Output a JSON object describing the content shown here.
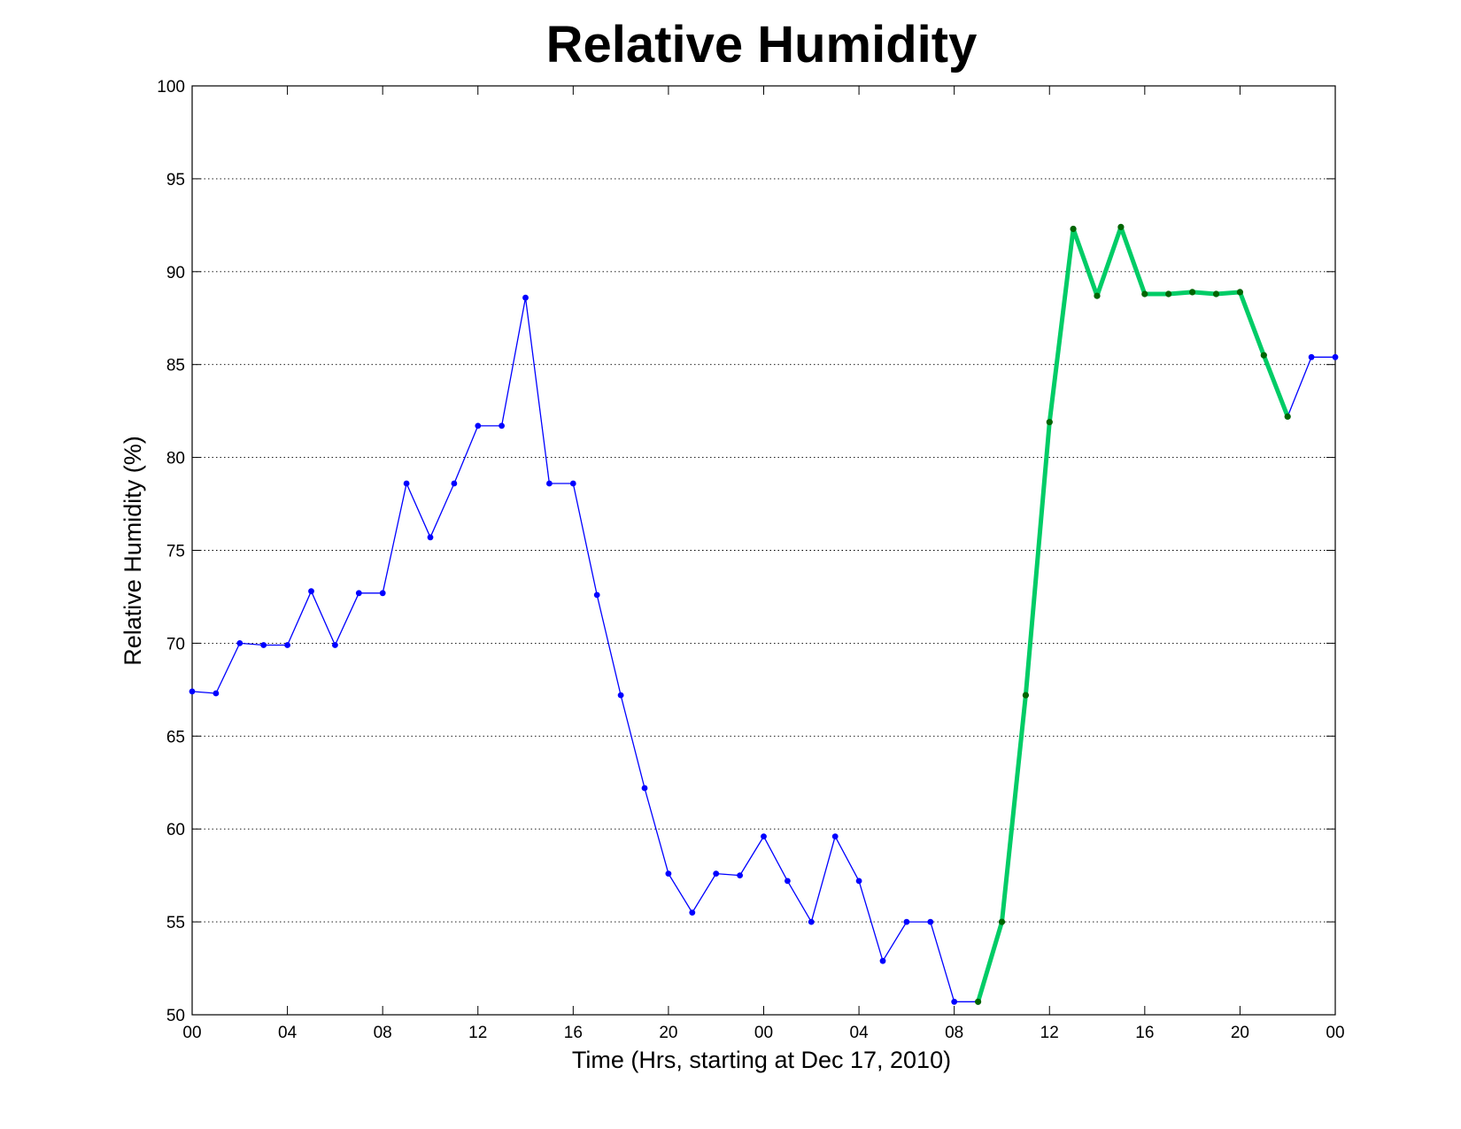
{
  "chart_data": {
    "type": "line",
    "title": "Relative Humidity",
    "xlabel": "Time (Hrs, starting at Dec 17, 2010)",
    "ylabel": "Relative Humidity (%)",
    "ylim": [
      50,
      100
    ],
    "xlim": [
      "2010-12-17 00:00",
      "2010-12-19 00:00"
    ],
    "grid": "horizontal",
    "legend": "none",
    "x_tick_labels": [
      "00",
      "04",
      "08",
      "12",
      "16",
      "20",
      "00",
      "04",
      "08",
      "12",
      "16",
      "20",
      "00"
    ],
    "y_tick_labels": [
      "50",
      "55",
      "60",
      "65",
      "70",
      "75",
      "80",
      "85",
      "90",
      "95",
      "100"
    ],
    "series": [
      {
        "color": "#0000ff",
        "marker_color": "#0000ff",
        "style": "thin",
        "x": [
          "2010-12-17 00:00",
          "2010-12-17 01:00",
          "2010-12-17 02:00",
          "2010-12-17 03:00",
          "2010-12-17 04:00",
          "2010-12-17 05:00",
          "2010-12-17 06:00",
          "2010-12-17 07:00",
          "2010-12-17 08:00",
          "2010-12-17 09:00",
          "2010-12-17 10:00",
          "2010-12-17 11:00",
          "2010-12-17 12:00",
          "2010-12-17 13:00",
          "2010-12-17 14:00",
          "2010-12-17 15:00",
          "2010-12-17 16:00",
          "2010-12-17 17:00",
          "2010-12-17 18:00",
          "2010-12-17 19:00",
          "2010-12-17 20:00",
          "2010-12-17 21:00",
          "2010-12-17 22:00",
          "2010-12-17 23:00",
          "2010-12-18 00:00",
          "2010-12-18 01:00",
          "2010-12-18 02:00",
          "2010-12-18 03:00",
          "2010-12-18 04:00",
          "2010-12-18 05:00",
          "2010-12-18 06:00",
          "2010-12-18 07:00",
          "2010-12-18 08:00",
          "2010-12-18 09:00",
          "2010-12-18 10:00",
          "2010-12-18 11:00",
          "2010-12-18 12:00",
          "2010-12-18 13:00",
          "2010-12-18 14:00",
          "2010-12-18 15:00",
          "2010-12-18 16:00",
          "2010-12-18 17:00",
          "2010-12-18 18:00",
          "2010-12-18 19:00",
          "2010-12-18 20:00",
          "2010-12-18 21:00",
          "2010-12-18 22:00",
          "2010-12-18 23:00",
          "2010-12-19 00:00"
        ],
        "values": [
          67.4,
          67.3,
          70.0,
          69.9,
          69.9,
          72.8,
          69.9,
          72.7,
          72.7,
          78.6,
          75.7,
          78.6,
          81.7,
          81.7,
          88.6,
          78.6,
          78.6,
          72.6,
          67.2,
          62.2,
          57.6,
          55.5,
          57.6,
          57.5,
          59.6,
          57.2,
          55.0,
          59.6,
          57.2,
          52.9,
          55.0,
          55.0,
          50.7,
          50.7,
          55.0,
          67.2,
          81.9,
          92.3,
          88.7,
          92.4,
          88.8,
          88.8,
          88.9,
          88.8,
          88.9,
          85.5,
          82.2,
          85.4,
          85.4
        ]
      },
      {
        "color": "#00cc66",
        "marker_color": "#006600",
        "style": "thick",
        "x": [
          "2010-12-18 09:00",
          "2010-12-18 10:00",
          "2010-12-18 11:00",
          "2010-12-18 12:00",
          "2010-12-18 13:00",
          "2010-12-18 14:00",
          "2010-12-18 15:00",
          "2010-12-18 16:00",
          "2010-12-18 17:00",
          "2010-12-18 18:00",
          "2010-12-18 19:00",
          "2010-12-18 20:00",
          "2010-12-18 21:00",
          "2010-12-18 22:00"
        ],
        "values": [
          50.7,
          55.0,
          67.2,
          81.9,
          92.3,
          88.7,
          92.4,
          88.8,
          88.8,
          88.9,
          88.8,
          88.9,
          85.5,
          82.2
        ]
      }
    ]
  }
}
